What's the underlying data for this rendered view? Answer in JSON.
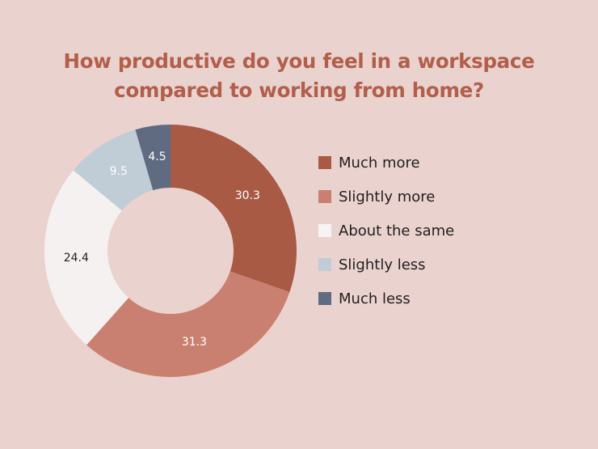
{
  "title_line1": "How productive do you feel in a workspace",
  "title_line2": "compared to working from home?",
  "chart_data": {
    "type": "pie",
    "donut": true,
    "title": "How productive do you feel in a workspace compared to working from home?",
    "categories": [
      "Much more",
      "Slightly more",
      "About the same",
      "Slightly less",
      "Much less"
    ],
    "values": [
      30.3,
      31.3,
      24.4,
      9.5,
      4.5
    ],
    "value_labels": [
      "30.3",
      "31.3",
      "24.4",
      "9.5",
      "4.5"
    ],
    "colors": [
      "#a85a45",
      "#c98070",
      "#f4f1f0",
      "#c0ccd6",
      "#5f6b80"
    ],
    "label_colors": [
      "#ffffff",
      "#ffffff",
      "#222222",
      "#ffffff",
      "#ffffff"
    ],
    "legend": "right"
  }
}
